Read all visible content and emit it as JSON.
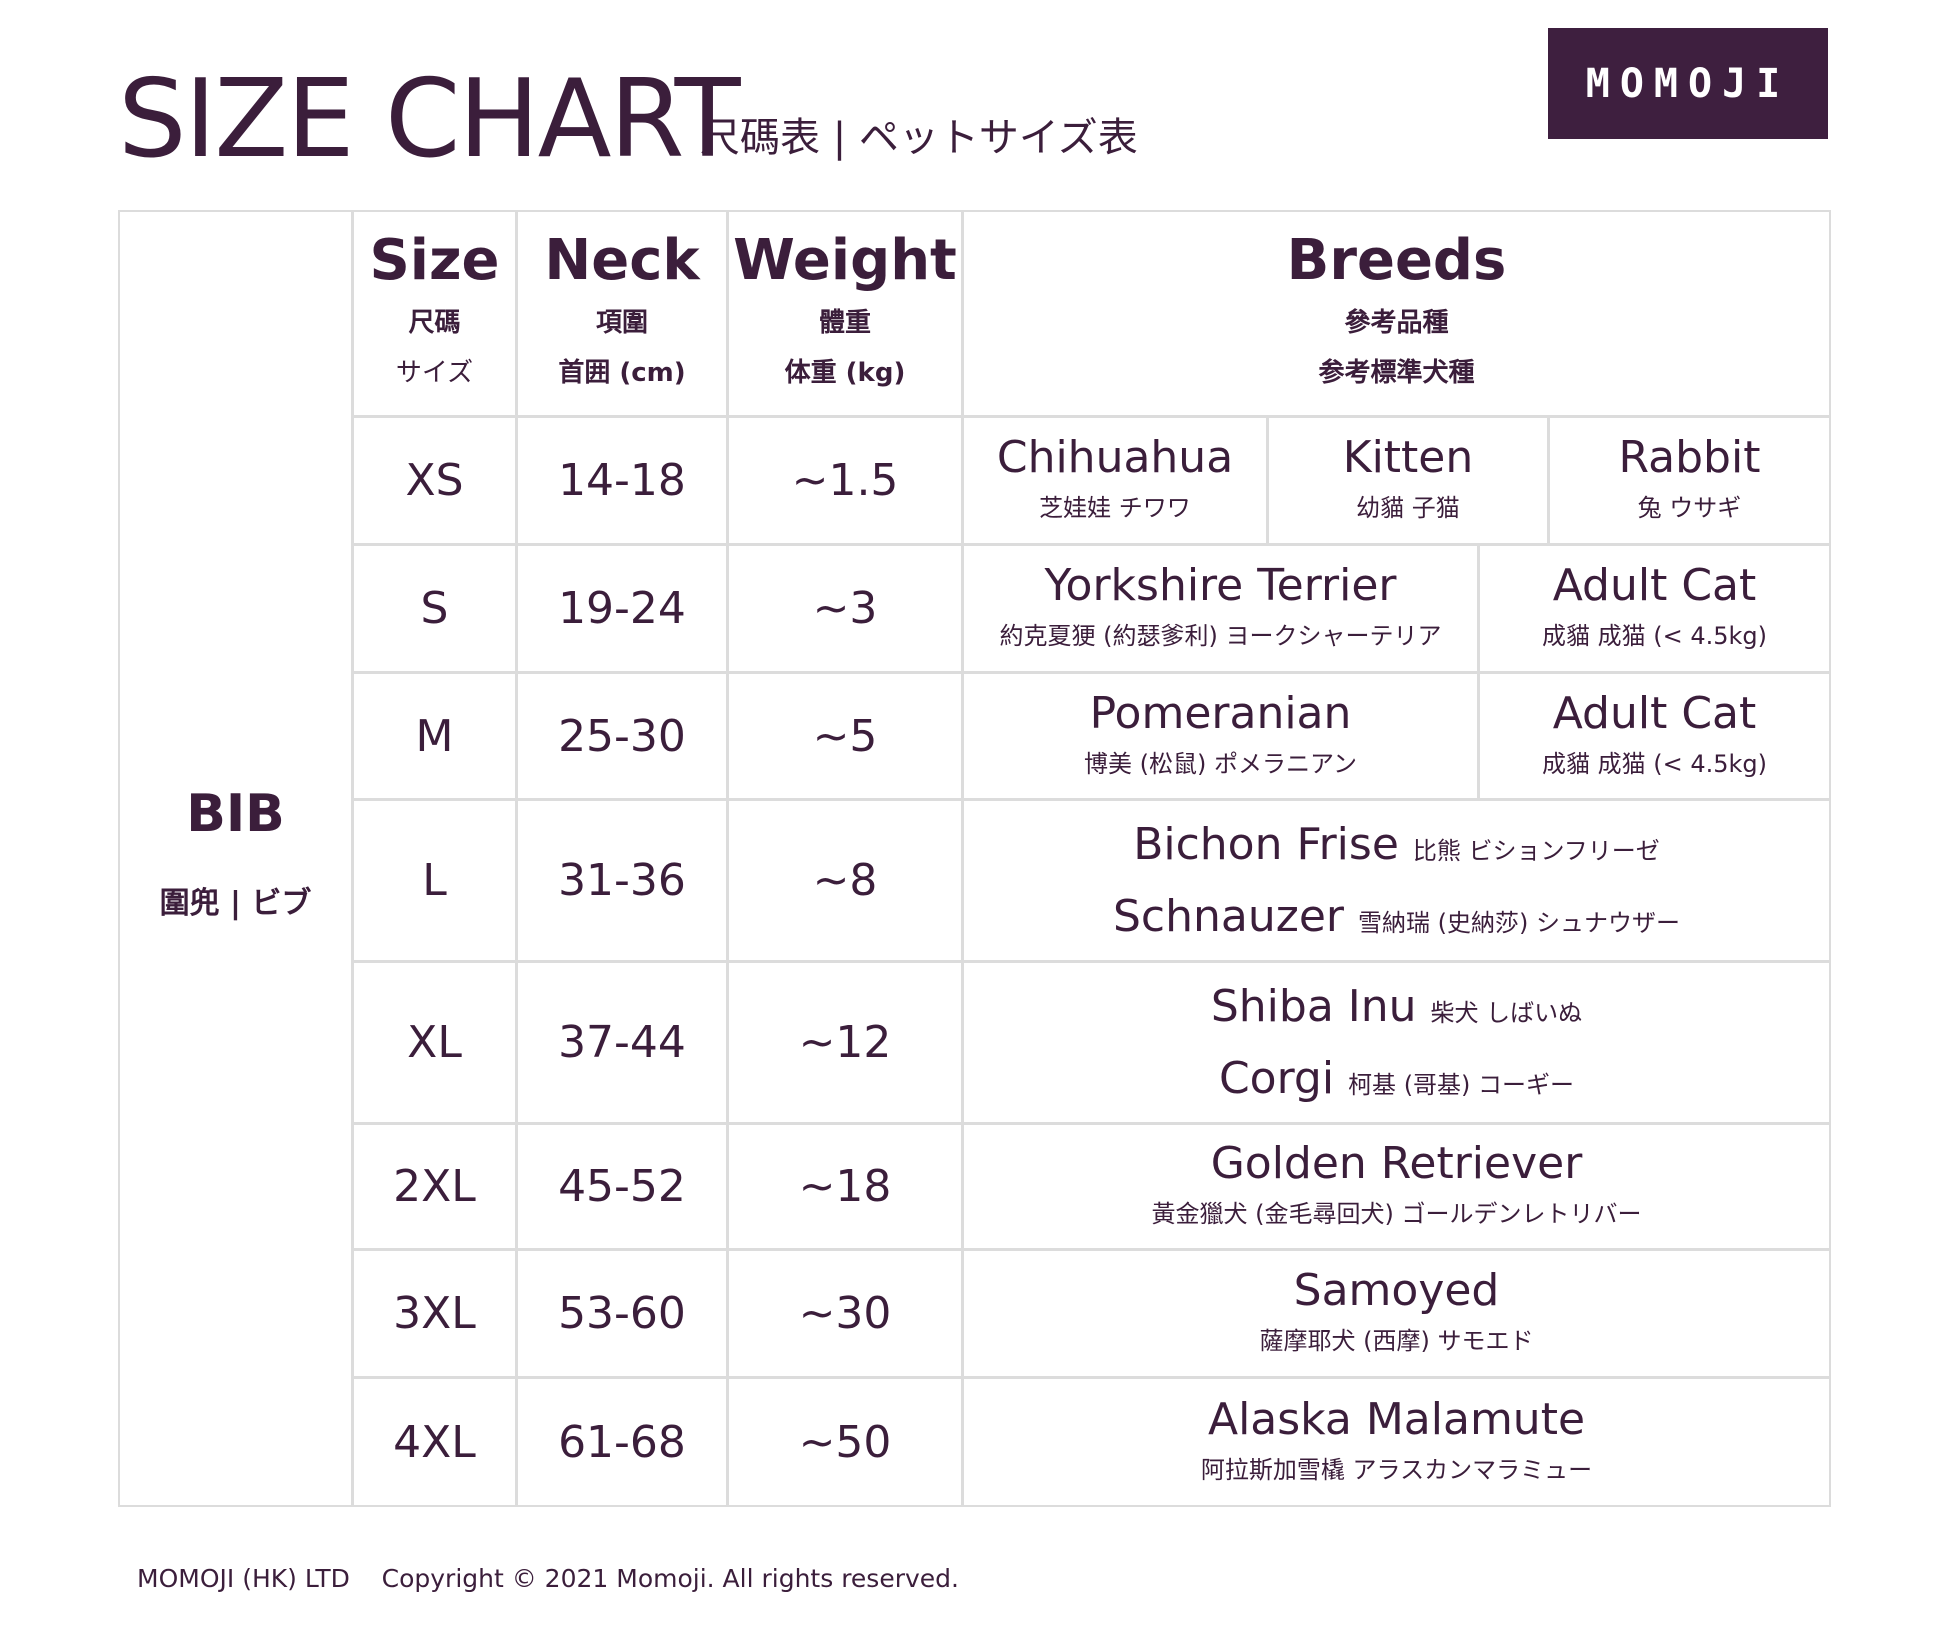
{
  "header": {
    "title": "SIZE CHART",
    "subtitle": "尺碼表 | ペットサイズ表",
    "logo": "MOMOJI"
  },
  "table": {
    "product": {
      "name": "BIB",
      "sub": "圍兜 | ビブ"
    },
    "columns": [
      {
        "title": "Size",
        "sub1": "尺碼",
        "sub2": "サイズ"
      },
      {
        "title": "Neck",
        "sub1": "項圍",
        "sub2": "首囲 (cm)"
      },
      {
        "title": "Weight",
        "sub1": "體重",
        "sub2": "体重 (kg)"
      },
      {
        "title": "Breeds",
        "sub1": "參考品種",
        "sub2": "参考標準犬種"
      }
    ],
    "rows": [
      {
        "size": "XS",
        "neck": "14-18",
        "weight": "~1.5",
        "breeds": [
          {
            "name": "Chihuahua",
            "sub": "芝娃娃 チワワ"
          },
          {
            "name": "Kitten",
            "sub": "幼貓 子猫"
          },
          {
            "name": "Rabbit",
            "sub": "兔 ウサギ"
          }
        ]
      },
      {
        "size": "S",
        "neck": "19-24",
        "weight": "~3",
        "breeds": [
          {
            "name": "Yorkshire Terrier",
            "sub": "約克夏㹴 (約瑟爹利) ヨークシャーテリア"
          },
          {
            "name": "Adult Cat",
            "sub": "成貓 成猫 (< 4.5kg)"
          }
        ]
      },
      {
        "size": "M",
        "neck": "25-30",
        "weight": "~5",
        "breeds": [
          {
            "name": "Pomeranian",
            "sub": "博美 (松鼠) ポメラニアン"
          },
          {
            "name": "Adult Cat",
            "sub": "成貓 成猫 (< 4.5kg)"
          }
        ]
      },
      {
        "size": "L",
        "neck": "31-36",
        "weight": "~8",
        "breeds": [
          {
            "name": "Bichon Frise",
            "sub": "比熊 ビションフリーゼ"
          },
          {
            "name": "Schnauzer",
            "sub": "雪納瑞 (史納莎) シュナウザー"
          }
        ]
      },
      {
        "size": "XL",
        "neck": "37-44",
        "weight": "~12",
        "breeds": [
          {
            "name": "Shiba Inu",
            "sub": "柴犬 しばいぬ"
          },
          {
            "name": "Corgi",
            "sub": "柯基 (哥基) コーギー"
          }
        ]
      },
      {
        "size": "2XL",
        "neck": "45-52",
        "weight": "~18",
        "breeds": [
          {
            "name": "Golden Retriever",
            "sub": "黃金獵犬 (金毛尋回犬) ゴールデンレトリバー"
          }
        ]
      },
      {
        "size": "3XL",
        "neck": "53-60",
        "weight": "~30",
        "breeds": [
          {
            "name": "Samoyed",
            "sub": "薩摩耶犬 (西摩) サモエド"
          }
        ]
      },
      {
        "size": "4XL",
        "neck": "61-68",
        "weight": "~50",
        "breeds": [
          {
            "name": "Alaska Malamute",
            "sub": "阿拉斯加雪橇 アラスカンマラミュー"
          }
        ]
      }
    ]
  },
  "footer": {
    "text": "MOMOJI (HK) LTD    Copyright © 2021 Momoji. All rights reserved."
  },
  "colors": {
    "text": "#3b1e3b",
    "logo_bg": "#3e1f3f",
    "border": "#dcdcdc"
  }
}
